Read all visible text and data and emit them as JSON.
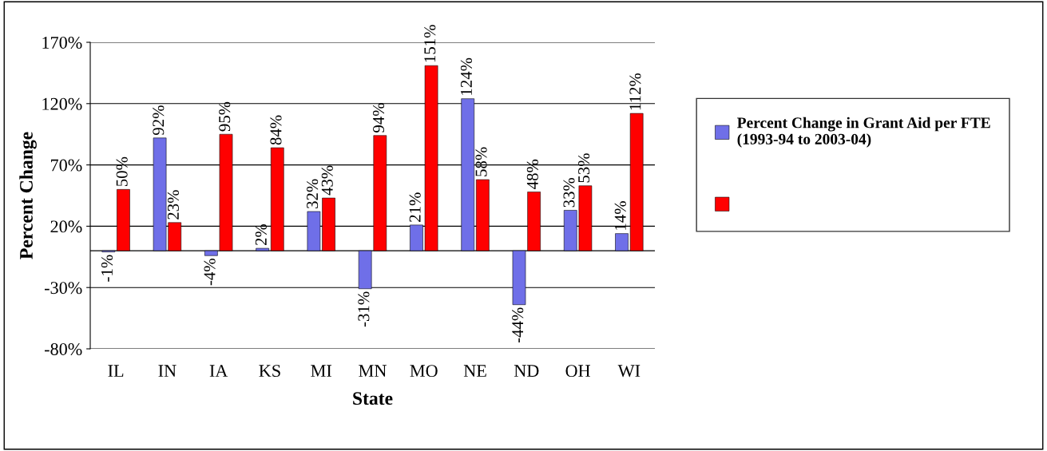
{
  "chart_data": {
    "type": "bar",
    "xlabel": "State",
    "ylabel": "Percent Change",
    "categories": [
      "IL",
      "IN",
      "IA",
      "KS",
      "MI",
      "MN",
      "MO",
      "NE",
      "ND",
      "OH",
      "WI"
    ],
    "series": [
      {
        "name": "Percent Change in Grant Aid per FTE\n(1993-94 to 2003-04)",
        "color": "#6f6fe8",
        "values": [
          -1,
          92,
          -4,
          2,
          32,
          -31,
          21,
          124,
          -44,
          33,
          14
        ],
        "value_labels": [
          "-1%",
          "92%",
          "-4%",
          "2%",
          "32%",
          "-31%",
          "21%",
          "124%",
          "-44%",
          "33%",
          "14%"
        ]
      },
      {
        "color": "#ff0000",
        "values": [
          50,
          23,
          95,
          84,
          43,
          94,
          151,
          58,
          48,
          53,
          112
        ],
        "value_labels": [
          "50%",
          "23%",
          "95%",
          "84%",
          "43%",
          "94%",
          "151%",
          "58%",
          "48%",
          "53%",
          "112%"
        ]
      }
    ],
    "ylim": [
      -80,
      170
    ],
    "yticks": [
      {
        "value": -80,
        "label": "-80%"
      },
      {
        "value": -30,
        "label": "-30%"
      },
      {
        "value": 20,
        "label": "20%"
      },
      {
        "value": 70,
        "label": "70%"
      },
      {
        "value": 120,
        "label": "120%"
      },
      {
        "value": 170,
        "label": "170%"
      }
    ],
    "grid": "y",
    "legend": "right"
  }
}
